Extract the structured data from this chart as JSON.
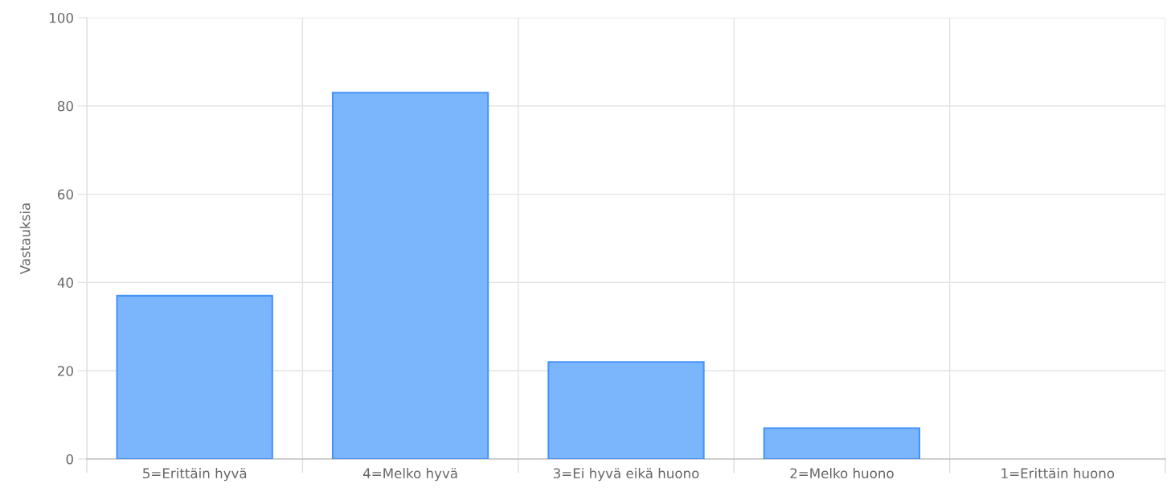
{
  "chart_data": {
    "type": "bar",
    "ylabel": "Vastauksia",
    "categories": [
      "5=Erittäin hyvä",
      "4=Melko hyvä",
      "3=Ei hyvä eikä huono",
      "2=Melko huono",
      "1=Erittäin huono"
    ],
    "series": [
      {
        "color": "#74b3fd",
        "values": [
          37,
          83,
          22,
          7,
          0
        ]
      }
    ],
    "ylim": [
      0,
      100
    ],
    "yticks": [
      0,
      20,
      40,
      60,
      80,
      100
    ],
    "grid": true,
    "legend": false
  }
}
